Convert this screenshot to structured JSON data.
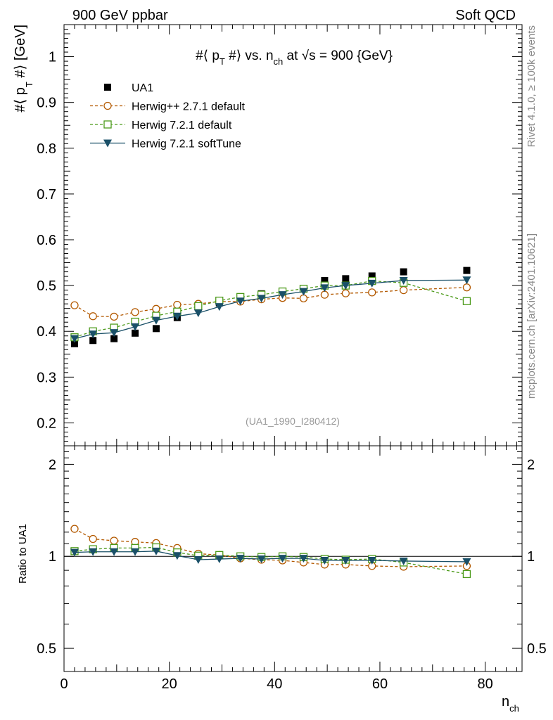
{
  "header": {
    "left": "900 GeV ppbar",
    "right": "Soft QCD"
  },
  "side_labels": {
    "rivet": "Rivet 4.1.0, ≥ 100k events",
    "mcplots": "mcplots.cern.ch [arXiv:2401.10621]"
  },
  "chart_data": {
    "type": "line",
    "title": "#⟨ p_T #⟩ vs. n_ch at √s = 900 {GeV}",
    "xlabel": "n_ch",
    "ylabel": "#⟨ p_T #⟩ [GeV]",
    "ratio_ylabel": "Ratio to UA1",
    "watermark": "(UA1_1990_I280412)",
    "xlim": [
      0,
      87
    ],
    "ylim": [
      0.15,
      1.07
    ],
    "ratio_ylim": [
      0.42,
      2.3
    ],
    "x_ticks": [
      0,
      20,
      40,
      60,
      80
    ],
    "y_ticks": [
      0.2,
      0.3,
      0.4,
      0.5,
      0.6,
      0.7,
      0.8,
      0.9,
      1
    ],
    "ratio_ticks": [
      0.5,
      1,
      2
    ],
    "x": [
      2,
      5.5,
      9.5,
      13.5,
      17.5,
      21.5,
      25.5,
      29.5,
      33.5,
      37.5,
      41.5,
      45.5,
      49.5,
      53.5,
      58.5,
      64.5,
      76.5
    ],
    "series": [
      {
        "name": "UA1",
        "style": "data",
        "color": "#000000",
        "values": [
          0.373,
          0.38,
          0.384,
          0.396,
          0.406,
          0.43,
          0.452,
          0.462,
          0.474,
          0.482,
          0.487,
          0.494,
          0.511,
          0.515,
          0.521,
          0.53,
          0.533
        ]
      },
      {
        "name": "Herwig++ 2.7.1 default",
        "style": "circle",
        "color": "#b35900",
        "values": [
          0.457,
          0.433,
          0.432,
          0.442,
          0.449,
          0.458,
          0.46,
          0.465,
          0.465,
          0.47,
          0.473,
          0.472,
          0.48,
          0.483,
          0.485,
          0.49,
          0.496
        ],
        "ratio": [
          1.23,
          1.14,
          1.125,
          1.115,
          1.105,
          1.065,
          1.02,
          1.01,
          0.985,
          0.975,
          0.97,
          0.955,
          0.94,
          0.94,
          0.93,
          0.925,
          0.93
        ]
      },
      {
        "name": "Herwig 7.2.1 default",
        "style": "square",
        "color": "#4c9a1a",
        "values": [
          0.387,
          0.4,
          0.408,
          0.421,
          0.434,
          0.443,
          0.455,
          0.467,
          0.475,
          0.48,
          0.487,
          0.493,
          0.5,
          0.5,
          0.51,
          0.506,
          0.466
        ],
        "ratio": [
          1.04,
          1.055,
          1.065,
          1.065,
          1.07,
          1.03,
          1.005,
          1.01,
          1.0,
          0.995,
          1.0,
          0.995,
          0.98,
          0.975,
          0.98,
          0.955,
          0.875
        ]
      },
      {
        "name": "Herwig 7.2.1 softTune",
        "style": "triangle",
        "color": "#1a5068",
        "values": [
          0.384,
          0.394,
          0.397,
          0.41,
          0.424,
          0.433,
          0.44,
          0.454,
          0.466,
          0.472,
          0.48,
          0.487,
          0.495,
          0.5,
          0.505,
          0.511,
          0.512
        ],
        "ratio": [
          1.03,
          1.035,
          1.035,
          1.035,
          1.04,
          1.005,
          0.975,
          0.98,
          0.985,
          0.98,
          0.985,
          0.985,
          0.97,
          0.97,
          0.97,
          0.965,
          0.96
        ]
      }
    ]
  }
}
